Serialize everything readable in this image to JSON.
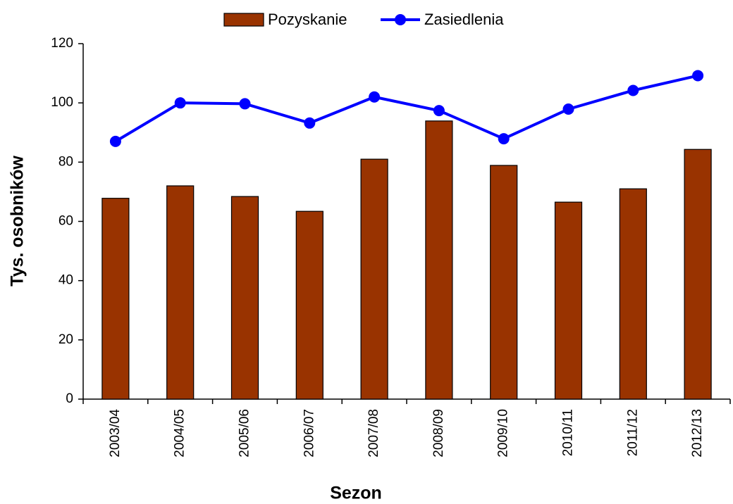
{
  "chart_data": {
    "type": "bar",
    "x_label": "Sezon",
    "y_label": "Tys. osobników",
    "categories": [
      "2003/04",
      "2004/05",
      "2005/06",
      "2006/07",
      "2007/08",
      "2008/09",
      "2009/10",
      "2010/11",
      "2011/12",
      "2012/13"
    ],
    "series": [
      {
        "name": "Pozyskanie",
        "type": "bar",
        "color": "#993300",
        "values": [
          67.8,
          72,
          68.4,
          63.4,
          81,
          93.9,
          78.9,
          66.5,
          71,
          84.3
        ]
      },
      {
        "name": "Zasiedlenia",
        "type": "line",
        "color": "#0000ff",
        "values": [
          87,
          100,
          99.7,
          93.2,
          102,
          97.4,
          87.9,
          97.9,
          104.2,
          109.2
        ]
      }
    ],
    "ylim": [
      0,
      120
    ],
    "yticks": [
      0,
      20,
      40,
      60,
      80,
      100,
      120
    ],
    "grid": false,
    "legend": "top"
  }
}
